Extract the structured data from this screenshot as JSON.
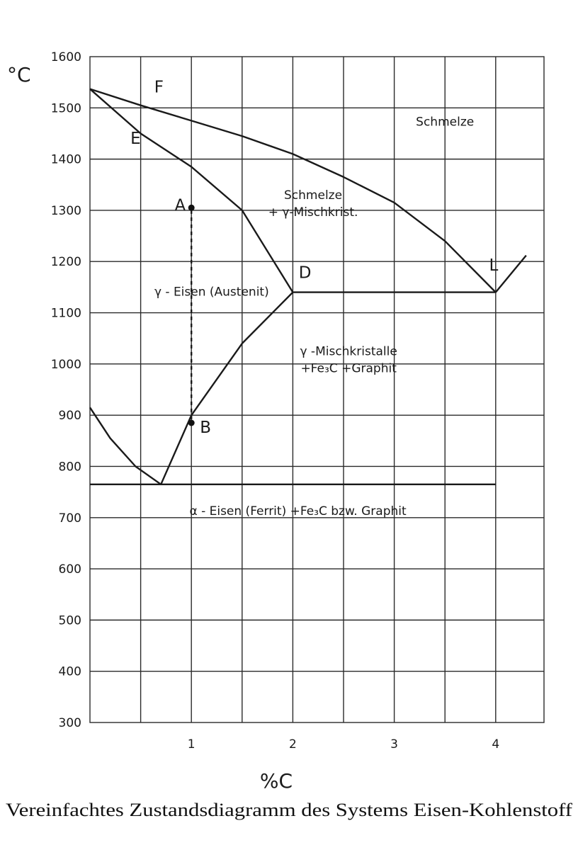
{
  "chart_data": {
    "type": "line",
    "title": "Vereinfachtes Zustandsdiagramm des Systems Eisen-Kohlenstoff",
    "xlabel": "%C",
    "ylabel": "°C",
    "xlim": [
      0,
      4.4
    ],
    "ylim": [
      300,
      1600
    ],
    "xticks": [
      "1",
      "2",
      "3",
      "4"
    ],
    "yticks": [
      "300",
      "400",
      "500",
      "600",
      "700",
      "800",
      "900",
      "1000",
      "1100",
      "1200",
      "1300",
      "1400",
      "1500",
      "1600"
    ],
    "grid": true,
    "series": [
      {
        "id": "liquidus-FL",
        "points": [
          [
            0,
            1537
          ],
          [
            0.5,
            1505
          ],
          [
            1,
            1475
          ],
          [
            1.5,
            1445
          ],
          [
            2,
            1410
          ],
          [
            2.5,
            1365
          ],
          [
            3,
            1315
          ],
          [
            3.5,
            1240
          ],
          [
            4,
            1140
          ]
        ]
      },
      {
        "id": "liquidus-right",
        "points": [
          [
            4,
            1140
          ],
          [
            4.3,
            1212
          ]
        ]
      },
      {
        "id": "solidus-ED",
        "points": [
          [
            0,
            1537
          ],
          [
            0.5,
            1450
          ],
          [
            1,
            1385
          ],
          [
            1.5,
            1300
          ],
          [
            2,
            1140
          ]
        ]
      },
      {
        "id": "eutectic-line",
        "points": [
          [
            2,
            1140
          ],
          [
            4,
            1140
          ]
        ]
      },
      {
        "id": "gamma-boundary-D",
        "points": [
          [
            2,
            1140
          ],
          [
            1.5,
            1040
          ],
          [
            1,
            900
          ],
          [
            0.7,
            765
          ]
        ]
      },
      {
        "id": "alpha-boundary",
        "points": [
          [
            0,
            915
          ],
          [
            0.2,
            855
          ],
          [
            0.45,
            800
          ],
          [
            0.7,
            765
          ]
        ]
      },
      {
        "id": "eutectoid-line",
        "points": [
          [
            0,
            765
          ],
          [
            4,
            765
          ]
        ]
      },
      {
        "id": "cooling-path-AB",
        "dashed": true,
        "points": [
          [
            1,
            1300
          ],
          [
            1,
            885
          ]
        ]
      }
    ],
    "markers": [
      {
        "label": "A",
        "x": 1,
        "y": 1305
      },
      {
        "label": "B",
        "x": 1,
        "y": 885
      }
    ],
    "point_labels": [
      {
        "label": "F",
        "x": 0.68,
        "y": 1530
      },
      {
        "label": "E",
        "x": 0.45,
        "y": 1430
      },
      {
        "label": "D",
        "x": 2.12,
        "y": 1168
      },
      {
        "label": "L",
        "x": 3.98,
        "y": 1182
      }
    ],
    "regions": [
      {
        "lines": [
          "Schmelze"
        ],
        "x": 3.5,
        "y": 1465
      },
      {
        "lines": [
          "Schmelze",
          "+ γ-Mischkrist."
        ],
        "x": 2.2,
        "y": 1322
      },
      {
        "lines": [
          "γ - Eisen (Austenit)"
        ],
        "x": 1.2,
        "y": 1133
      },
      {
        "lines": [
          "γ -Mischkristalle",
          "+Fe₃C +Graphit"
        ],
        "x": 2.55,
        "y": 1017
      },
      {
        "lines": [
          "α - Eisen (Ferrit)   +Fe₃C  bzw. Graphit"
        ],
        "x": 2.05,
        "y": 705
      }
    ]
  }
}
